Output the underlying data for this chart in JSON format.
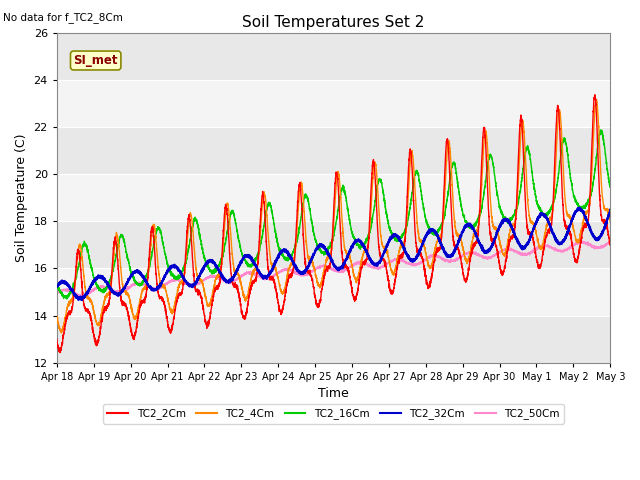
{
  "title": "Soil Temperatures Set 2",
  "note": "No data for f_TC2_8Cm",
  "xlabel": "Time",
  "ylabel": "Soil Temperature (C)",
  "ylim": [
    12,
    26
  ],
  "tick_labels": [
    "Apr 18",
    "Apr 19",
    "Apr 20",
    "Apr 21",
    "Apr 22",
    "Apr 23",
    "Apr 24",
    "Apr 25",
    "Apr 26",
    "Apr 27",
    "Apr 28",
    "Apr 29",
    "Apr 30",
    "May 1",
    "May 2",
    "May 3"
  ],
  "line_colors": [
    "#ff0000",
    "#ff8800",
    "#00cc00",
    "#0000cc",
    "#ff88cc"
  ],
  "legend_labels": [
    "TC2_2Cm",
    "TC2_4Cm",
    "TC2_16Cm",
    "TC2_32Cm",
    "TC2_50Cm"
  ],
  "si_met_label": "SI_met",
  "fig_bg": "#ffffff",
  "plot_bg": "#ffffff",
  "band_colors": [
    "#e8e8e8",
    "#f4f4f4"
  ],
  "yticks": [
    12,
    14,
    16,
    18,
    20,
    22,
    24,
    26
  ]
}
